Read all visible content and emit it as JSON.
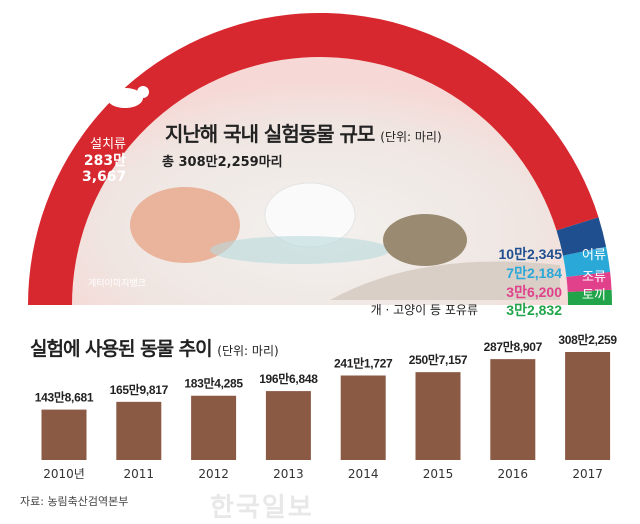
{
  "top": {
    "title": "지난해 국내 실험동물 규모",
    "unit": "(단위: 마리)",
    "total": "총 308만2,259마리",
    "photo_credit": "게티이미지뱅크",
    "categories": [
      {
        "name": "설치류",
        "value_text": "283만 3,667",
        "value": 2833667,
        "color": "#d7282f"
      },
      {
        "name": "어류",
        "value_text": "10만2,345",
        "value": 102345,
        "color": "#1f4f8f"
      },
      {
        "name": "조류",
        "value_text": "7만2,184",
        "value": 72184,
        "color": "#2aa8d8"
      },
      {
        "name": "토끼",
        "value_text": "3만6,200",
        "value": 36200,
        "color": "#e0418a"
      },
      {
        "name": "개 · 고양이 등 포유류",
        "value_text": "3만2,832",
        "value": 32832,
        "color": "#22a54a"
      }
    ]
  },
  "chart_data": {
    "type": "bar",
    "title": "실험에 사용된 동물 추이",
    "unit": "(단위: 마리)",
    "categories": [
      "2010년",
      "2011",
      "2012",
      "2013",
      "2014",
      "2015",
      "2016",
      "2017"
    ],
    "values": [
      1438681,
      1659817,
      1834285,
      1966848,
      2411727,
      2507157,
      2878907,
      3082259
    ],
    "labels": [
      "143만8,681",
      "165만9,817",
      "183만4,285",
      "196만6,848",
      "241만1,727",
      "250만7,157",
      "287만8,907",
      "308만2,259"
    ],
    "bar_color": "#8b5a45",
    "grid": false
  },
  "source": "자료: 농림축산검역본부",
  "watermark": "한국일보"
}
